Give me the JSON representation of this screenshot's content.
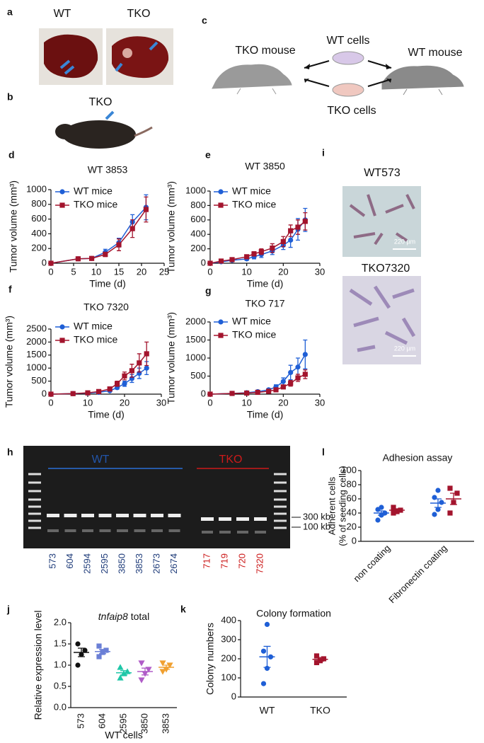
{
  "chart_data": [
    {
      "type": "line",
      "panel": "d",
      "title": "WT 3853",
      "xlabel": "Time (d)",
      "ylabel": "Tumor volume (mm³)",
      "x": [
        0,
        6,
        9,
        12,
        15,
        18,
        21
      ],
      "xlim": [
        0,
        25
      ],
      "xticks": [
        0,
        5,
        10,
        15,
        20,
        25
      ],
      "ylim": [
        0,
        1000
      ],
      "yticks": [
        0,
        200,
        400,
        600,
        800,
        1000
      ],
      "series": [
        {
          "name": "WT mice",
          "color": "#1f5fd6",
          "marker": "circle",
          "values": [
            0,
            60,
            65,
            150,
            280,
            560,
            760
          ],
          "errors": [
            0,
            10,
            10,
            40,
            60,
            100,
            170
          ]
        },
        {
          "name": "TKO mice",
          "color": "#a3142d",
          "marker": "square",
          "values": [
            0,
            60,
            65,
            120,
            250,
            470,
            730
          ],
          "errors": [
            0,
            10,
            10,
            30,
            80,
            120,
            170
          ]
        }
      ]
    },
    {
      "type": "line",
      "panel": "e",
      "title": "WT 3850",
      "xlabel": "Time (d)",
      "ylabel": "Tumor volume (mm³)",
      "x": [
        0,
        3,
        6,
        10,
        12,
        14,
        17,
        20,
        22,
        24,
        26
      ],
      "xlim": [
        0,
        30
      ],
      "xticks": [
        0,
        10,
        20,
        30
      ],
      "ylim": [
        0,
        1000
      ],
      "yticks": [
        0,
        200,
        400,
        600,
        800,
        1000
      ],
      "series": [
        {
          "name": "WT mice",
          "color": "#1f5fd6",
          "marker": "circle",
          "values": [
            0,
            20,
            40,
            60,
            90,
            120,
            170,
            250,
            320,
            470,
            600
          ],
          "errors": [
            0,
            5,
            10,
            20,
            30,
            40,
            50,
            60,
            100,
            150,
            160
          ]
        },
        {
          "name": "TKO mice",
          "color": "#a3142d",
          "marker": "square",
          "values": [
            0,
            30,
            50,
            90,
            130,
            160,
            210,
            300,
            450,
            500,
            580
          ],
          "errors": [
            0,
            5,
            10,
            20,
            30,
            40,
            60,
            70,
            80,
            100,
            120
          ]
        }
      ]
    },
    {
      "type": "line",
      "panel": "f",
      "title": "TKO 7320",
      "xlabel": "Time (d)",
      "ylabel": "Tumor volume (mm³)",
      "x": [
        0,
        6,
        10,
        13,
        16,
        18,
        20,
        22,
        24,
        26
      ],
      "xlim": [
        0,
        30
      ],
      "xticks": [
        0,
        10,
        20,
        30
      ],
      "ylim": [
        0,
        2500
      ],
      "yticks": [
        0,
        500,
        1000,
        1500,
        2000,
        2500
      ],
      "series": [
        {
          "name": "WT mice",
          "color": "#1f5fd6",
          "marker": "circle",
          "values": [
            0,
            20,
            40,
            70,
            130,
            250,
            400,
            600,
            800,
            1000
          ],
          "errors": [
            0,
            5,
            10,
            20,
            40,
            60,
            100,
            150,
            200,
            250
          ]
        },
        {
          "name": "TKO mice",
          "color": "#a3142d",
          "marker": "square",
          "values": [
            0,
            20,
            50,
            100,
            200,
            400,
            700,
            900,
            1200,
            1550
          ],
          "errors": [
            0,
            5,
            10,
            20,
            50,
            100,
            150,
            250,
            350,
            450
          ]
        }
      ]
    },
    {
      "type": "line",
      "panel": "g",
      "title": "TKO 717",
      "xlabel": "Time (d)",
      "ylabel": "Tumor volume (mm³)",
      "x": [
        0,
        6,
        10,
        13,
        16,
        18,
        20,
        22,
        24,
        26
      ],
      "xlim": [
        0,
        30
      ],
      "xticks": [
        0,
        10,
        20,
        30
      ],
      "ylim": [
        0,
        2000
      ],
      "yticks": [
        0,
        500,
        1000,
        1500,
        2000
      ],
      "series": [
        {
          "name": "WT mice",
          "color": "#1f5fd6",
          "marker": "circle",
          "values": [
            0,
            20,
            40,
            70,
            120,
            200,
            350,
            600,
            750,
            1100
          ],
          "errors": [
            0,
            5,
            10,
            20,
            40,
            60,
            100,
            200,
            250,
            400
          ]
        },
        {
          "name": "TKO mice",
          "color": "#a3142d",
          "marker": "square",
          "values": [
            0,
            20,
            30,
            50,
            80,
            120,
            200,
            300,
            450,
            550
          ],
          "errors": [
            0,
            5,
            5,
            10,
            20,
            30,
            50,
            80,
            100,
            120
          ]
        }
      ]
    },
    {
      "type": "dot",
      "panel": "l",
      "title": "Adhesion assay",
      "ylabel": [
        "Adherent cells",
        "(% of seeding cells)"
      ],
      "categories": [
        "non coating",
        "Fibronectin coating"
      ],
      "ylim": [
        0,
        100
      ],
      "yticks": [
        0,
        20,
        40,
        60,
        80,
        100
      ],
      "groups": [
        [
          {
            "color": "#1f5fd6",
            "marker": "circle",
            "points": [
              30,
              37,
              40,
              45,
              48
            ],
            "mean": 40,
            "sem": 3
          },
          {
            "color": "#a3142d",
            "marker": "square",
            "points": [
              40,
              42,
              44,
              48
            ],
            "mean": 44,
            "sem": 2
          }
        ],
        [
          {
            "color": "#1f5fd6",
            "marker": "circle",
            "points": [
              38,
              45,
              55,
              62,
              72
            ],
            "mean": 54,
            "sem": 6
          },
          {
            "color": "#a3142d",
            "marker": "square",
            "points": [
              40,
              55,
              68,
              75
            ],
            "mean": 60,
            "sem": 8
          }
        ]
      ]
    },
    {
      "type": "dot",
      "panel": "j",
      "title_gene": "tnfaip8",
      "title": "total",
      "ylabel": "Relative expression level",
      "xlabel": "WT cells",
      "categories": [
        "573",
        "604",
        "2595",
        "3850",
        "3853"
      ],
      "ylim": [
        0,
        2
      ],
      "yticks": [
        {
          "value": 0,
          "label": "0.0"
        },
        0.5,
        {
          "value": 1,
          "label": "1.0"
        },
        1.5,
        {
          "value": 2,
          "label": "2.0"
        }
      ],
      "groups": [
        [
          {
            "color": "#111111",
            "marker": "circle",
            "points": [
              1.0,
              1.25,
              1.35,
              1.5
            ],
            "mean": 1.3,
            "sem": 0.1
          }
        ],
        [
          {
            "color": "#6a7fd6",
            "marker": "square",
            "points": [
              1.2,
              1.3,
              1.35,
              1.45
            ],
            "mean": 1.32,
            "sem": 0.05
          }
        ],
        [
          {
            "color": "#1fc7a8",
            "marker": "triangle",
            "points": [
              0.7,
              0.8,
              0.85,
              0.95
            ],
            "mean": 0.82,
            "sem": 0.05
          }
        ],
        [
          {
            "color": "#b05cc8",
            "marker": "triangle-down",
            "points": [
              0.65,
              0.8,
              0.9,
              1.05
            ],
            "mean": 0.85,
            "sem": 0.08
          }
        ],
        [
          {
            "color": "#f0a030",
            "marker": "triangle-down",
            "points": [
              0.85,
              0.9,
              1.0,
              1.05
            ],
            "mean": 0.95,
            "sem": 0.05
          }
        ]
      ]
    },
    {
      "type": "dot",
      "panel": "k",
      "title": "Colony formation",
      "ylabel": "Colony numbers",
      "categories": [
        "WT",
        "TKO"
      ],
      "ylim": [
        0,
        400
      ],
      "yticks": [
        0,
        100,
        200,
        300,
        400
      ],
      "groups": [
        [
          {
            "color": "#1f5fd6",
            "marker": "circle",
            "points": [
              70,
              150,
              210,
              240,
              380
            ],
            "mean": 210,
            "sem": 55
          }
        ],
        [
          {
            "color": "#a3142d",
            "marker": "square",
            "points": [
              180,
              190,
              200,
              215
            ],
            "mean": 197,
            "sem": 10
          }
        ]
      ]
    }
  ],
  "panel_a": {
    "letter": "a",
    "wt": "WT",
    "tko": "TKO"
  },
  "panel_b": {
    "letter": "b",
    "label": "TKO"
  },
  "panel_c": {
    "letter": "c",
    "tko_mouse": "TKO mouse",
    "wt_cells": "WT cells",
    "wt_mouse": "WT mouse",
    "tko_cells": "TKO cells"
  },
  "panel_h": {
    "letter": "h",
    "wt": "WT",
    "tko": "TKO",
    "marker_high": "300 kb",
    "marker_low": "100 kb",
    "wt_lanes": [
      "573",
      "604",
      "2594",
      "2595",
      "3850",
      "3853",
      "2673",
      "2674"
    ],
    "tko_lanes": [
      "717",
      "719",
      "720",
      "7320"
    ]
  },
  "panel_i": {
    "letter": "i",
    "top": "WT573",
    "bottom": "TKO7320",
    "scale_top": "220 µm",
    "scale_bottom": "220 µm"
  }
}
